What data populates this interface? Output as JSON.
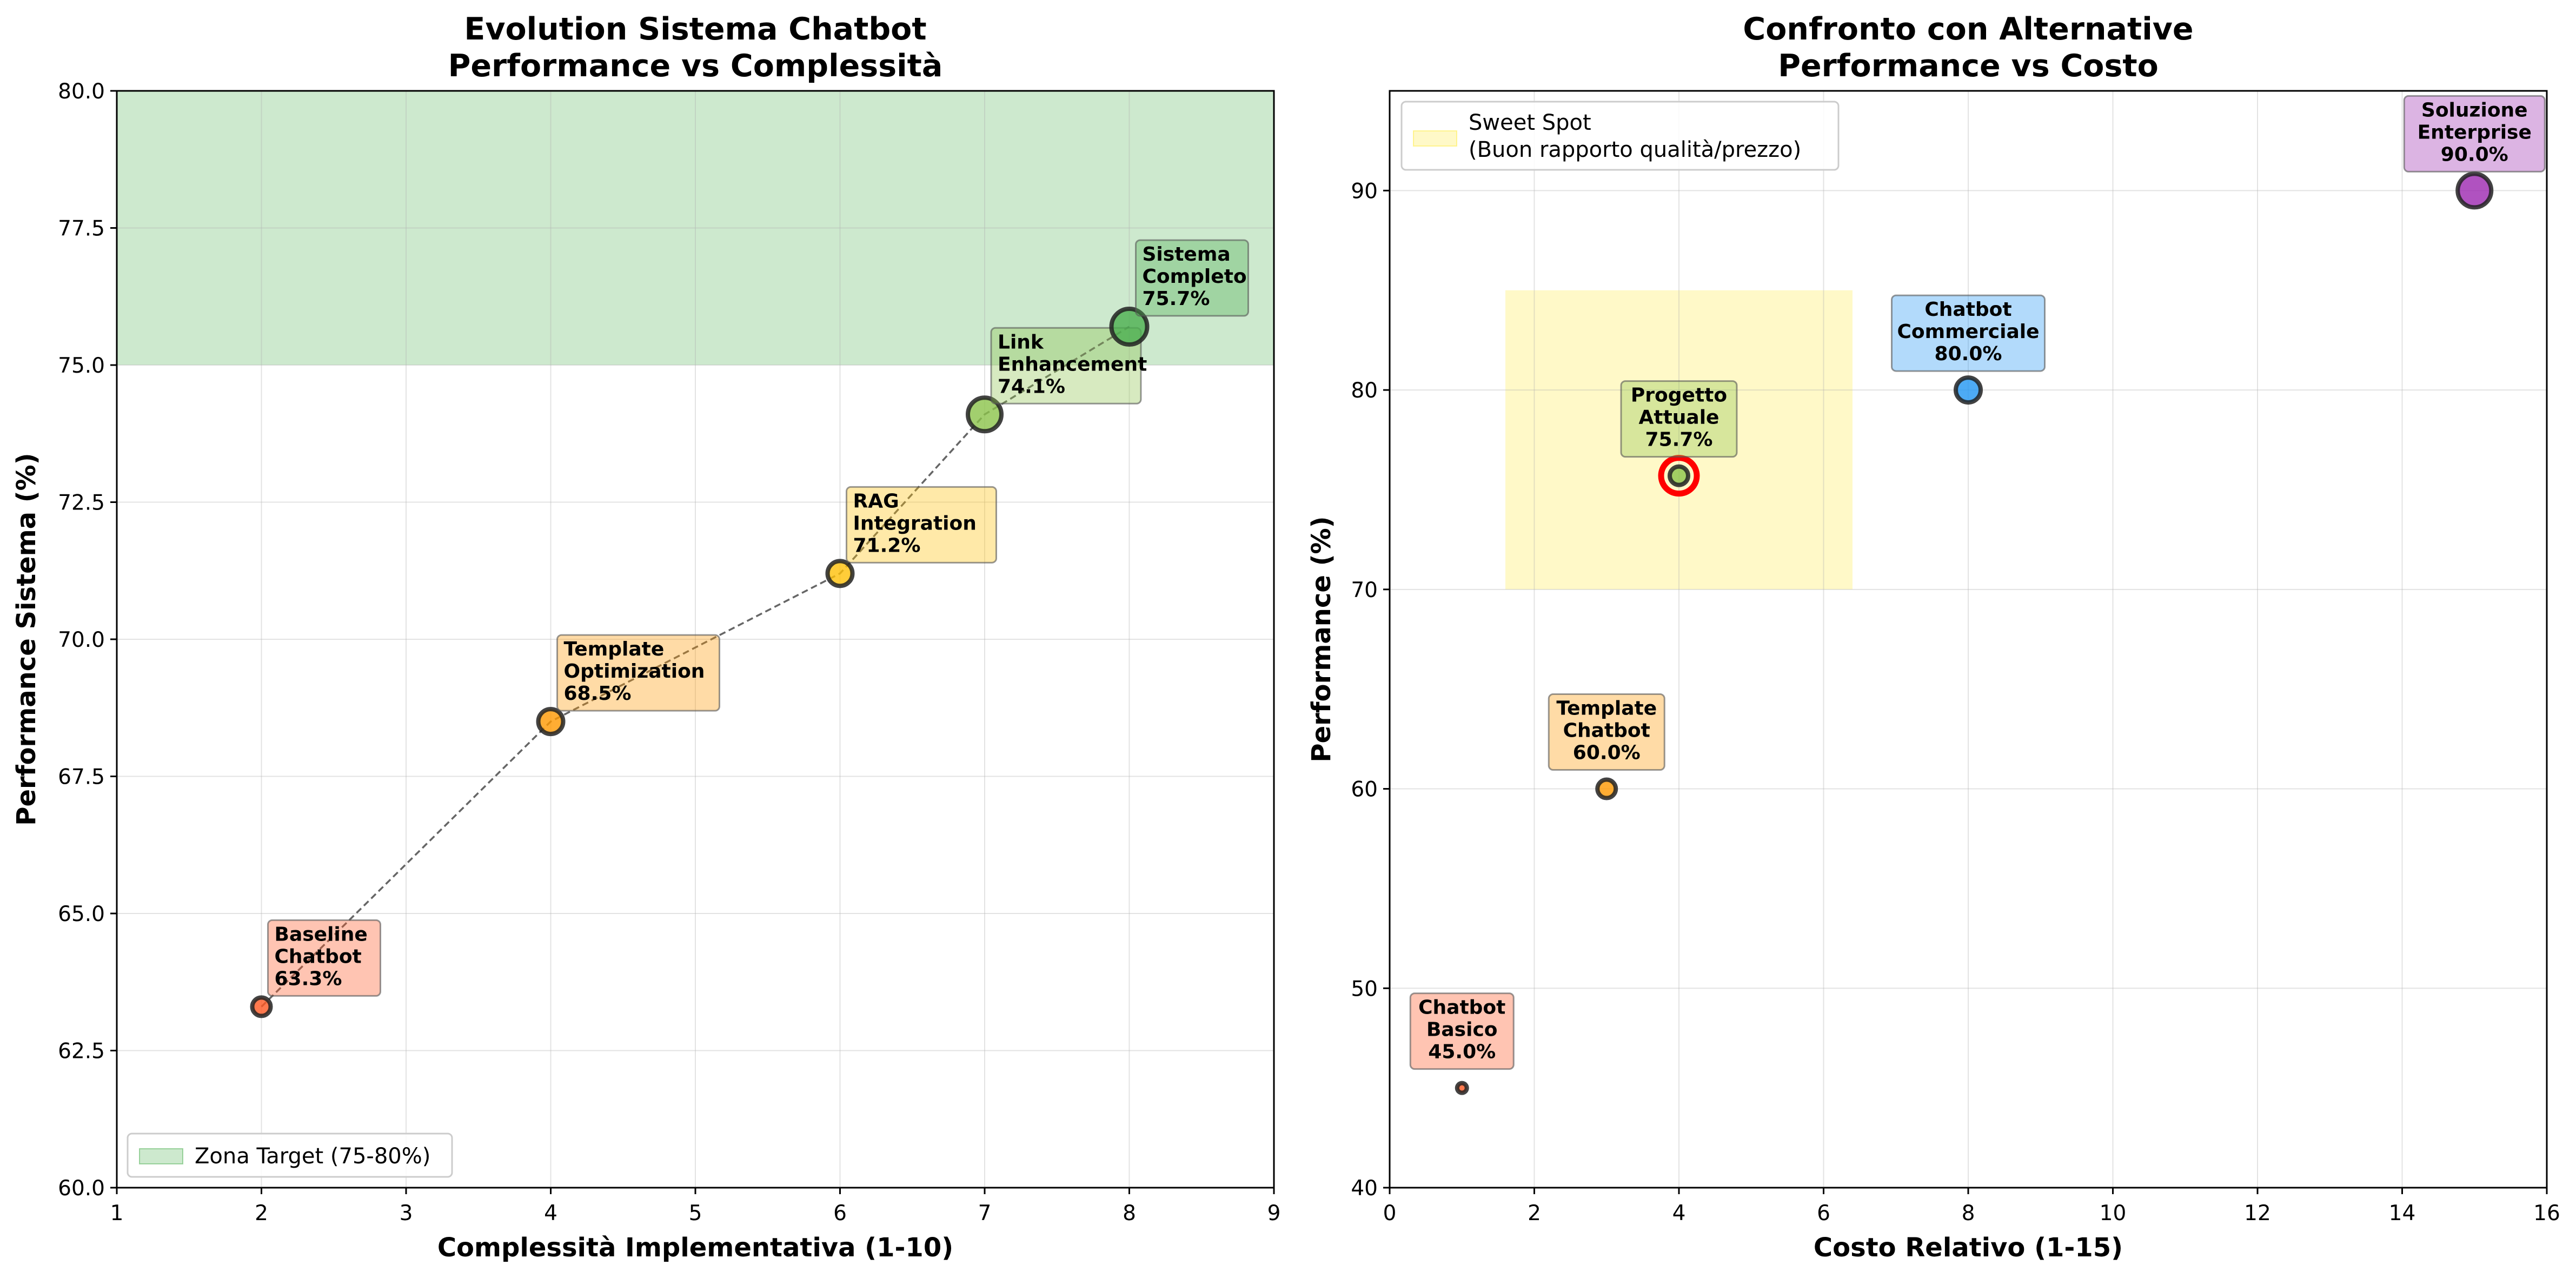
{
  "colors": {
    "target_zone": "#4CAF50",
    "sweet_spot": "#FFEB3B",
    "highlight_ring": "#ff0000",
    "trend_line": "#666666"
  },
  "chart_data": [
    {
      "type": "scatter",
      "title": [
        "Evolution Sistema Chatbot",
        "Performance vs Complessità"
      ],
      "xlabel": "Complessità Implementativa (1-10)",
      "ylabel": "Performance Sistema (%)",
      "xlim": [
        1,
        9
      ],
      "ylim": [
        60,
        80
      ],
      "xticks": [
        1,
        2,
        3,
        4,
        5,
        6,
        7,
        8,
        9
      ],
      "xtick_labels": [
        "1",
        "2",
        "3",
        "4",
        "5",
        "6",
        "7",
        "8",
        "9"
      ],
      "yticks": [
        60,
        62.5,
        65,
        67.5,
        70,
        72.5,
        75,
        77.5,
        80
      ],
      "ytick_labels": [
        "60.0",
        "62.5",
        "65.0",
        "67.5",
        "70.0",
        "72.5",
        "75.0",
        "77.5",
        "80.0"
      ],
      "grid": true,
      "connect_points": true,
      "band": {
        "y": [
          75,
          80
        ],
        "label": "Zona Target (75-80%)",
        "color": "#4CAF50"
      },
      "legend_position": "lower-left",
      "points": [
        {
          "x": 2,
          "y": 63.3,
          "label": [
            "Baseline",
            "Chatbot",
            "63.3%"
          ],
          "color": "#FF5722",
          "size": "small"
        },
        {
          "x": 4,
          "y": 68.5,
          "label": [
            "Template",
            "Optimization",
            "68.5%"
          ],
          "color": "#FF9800",
          "size": "medium"
        },
        {
          "x": 6,
          "y": 71.2,
          "label": [
            "RAG",
            "Integration",
            "71.2%"
          ],
          "color": "#FFC107",
          "size": "medium"
        },
        {
          "x": 7,
          "y": 74.1,
          "label": [
            "Link",
            "Enhancement",
            "74.1%"
          ],
          "color": "#8BC34A",
          "size": "large"
        },
        {
          "x": 8,
          "y": 75.7,
          "label": [
            "Sistema",
            "Completo",
            "75.7%"
          ],
          "color": "#4CAF50",
          "size": "xlarge"
        }
      ]
    },
    {
      "type": "scatter",
      "title": [
        "Confronto con Alternative",
        "Performance vs Costo"
      ],
      "xlabel": "Costo Relativo (1-15)",
      "ylabel": "Performance (%)",
      "xlim": [
        0,
        16
      ],
      "ylim": [
        40,
        95
      ],
      "xticks": [
        0,
        2,
        4,
        6,
        8,
        10,
        12,
        14,
        16
      ],
      "xtick_labels": [
        "0",
        "2",
        "4",
        "6",
        "8",
        "10",
        "12",
        "14",
        "16"
      ],
      "yticks": [
        40,
        50,
        60,
        70,
        80,
        90
      ],
      "ytick_labels": [
        "40",
        "50",
        "60",
        "70",
        "80",
        "90"
      ],
      "grid": true,
      "region": {
        "x": [
          1.6,
          6.4
        ],
        "y": [
          70,
          85
        ],
        "label": [
          "Sweet Spot",
          "(Buon rapporto qualità/prezzo)"
        ],
        "color": "#FFEB3B"
      },
      "legend_position": "top-left",
      "points": [
        {
          "x": 1,
          "y": 45,
          "label": [
            "Chatbot",
            "Basico",
            "45.0%"
          ],
          "color": "#FF5722",
          "size": "tiny"
        },
        {
          "x": 3,
          "y": 60,
          "label": [
            "Template",
            "Chatbot",
            "60.0%"
          ],
          "color": "#FF9800",
          "size": "small"
        },
        {
          "x": 4,
          "y": 75.7,
          "label": [
            "Progetto",
            "Attuale",
            "75.7%"
          ],
          "color": "#8BC34A",
          "size": "small",
          "highlight": true
        },
        {
          "x": 8,
          "y": 80,
          "label": [
            "Chatbot",
            "Commerciale",
            "80.0%"
          ],
          "color": "#2196F3",
          "size": "medium"
        },
        {
          "x": 15,
          "y": 90,
          "label": [
            "Soluzione",
            "Enterprise",
            "90.0%"
          ],
          "color": "#9C27B0",
          "size": "large"
        }
      ]
    }
  ]
}
